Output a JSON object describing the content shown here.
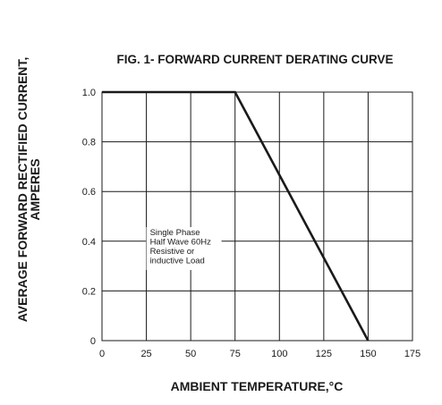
{
  "chart_data": {
    "type": "line",
    "title": "FIG. 1- FORWARD CURRENT DERATING CURVE",
    "xlabel": "AMBIENT TEMPERATURE,°C",
    "ylabel": [
      "AVERAGE FORWARD RECTIFIED CURRENT,",
      "AMPERES"
    ],
    "xlim": [
      0,
      175
    ],
    "ylim": [
      0,
      1.0
    ],
    "xticks": [
      0,
      25,
      50,
      75,
      100,
      125,
      150,
      175
    ],
    "xtick_labels": [
      "0",
      "25",
      "50",
      "75",
      "100",
      "125",
      "150",
      "175"
    ],
    "yticks": [
      0,
      0.2,
      0.4,
      0.6,
      0.8,
      1.0
    ],
    "ytick_labels": [
      "0",
      "0.2",
      "0.4",
      "0.6",
      "0.8",
      "1.0"
    ],
    "grid": true,
    "series": [
      {
        "x": [
          0,
          75,
          150
        ],
        "y": [
          1.0,
          1.0,
          0
        ],
        "color": "#1a1a1a"
      }
    ],
    "annotation": {
      "lines": [
        "Single Phase",
        "Half Wave 60Hz",
        "Resistive or",
        "inductive Load"
      ],
      "x": 25,
      "y": 0.41
    }
  }
}
